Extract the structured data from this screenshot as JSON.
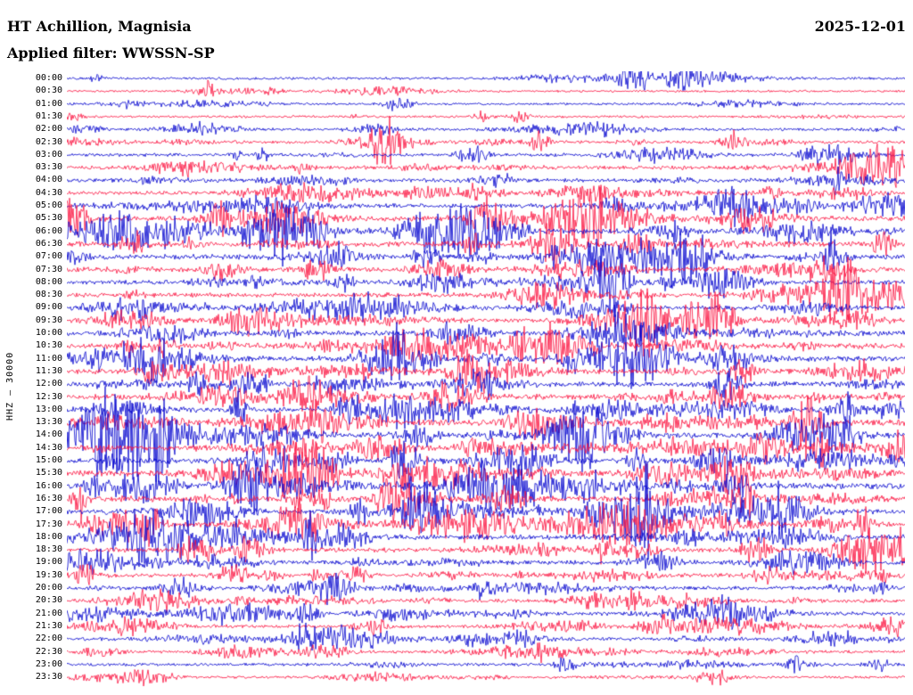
{
  "header": {
    "station_title": "HT Achillion, Magnisia",
    "date": "2025-12-01",
    "filter_label": "Applied filter: WWSSN-SP"
  },
  "axis": {
    "left_label": "HHZ — 30000"
  },
  "chart_data": {
    "type": "line",
    "kind": "helicorder-seismogram",
    "station": "HT Achillion, Magnisia",
    "channel": "HHZ",
    "scale": 30000,
    "date": "2025-12-01",
    "filter": "WWSSN-SP",
    "row_duration_minutes": 30,
    "grid": false,
    "legend": false,
    "trace_colors": {
      "blue": "#0202ce",
      "red": "#fb103e"
    },
    "rows": [
      {
        "time": "00:00",
        "color": "blue",
        "activity": 0.9
      },
      {
        "time": "00:30",
        "color": "red",
        "activity": 0.7
      },
      {
        "time": "01:00",
        "color": "blue",
        "activity": 0.7
      },
      {
        "time": "01:30",
        "color": "red",
        "activity": 0.8
      },
      {
        "time": "02:00",
        "color": "blue",
        "activity": 1.0
      },
      {
        "time": "02:30",
        "color": "red",
        "activity": 1.3
      },
      {
        "time": "03:00",
        "color": "blue",
        "activity": 1.4
      },
      {
        "time": "03:30",
        "color": "red",
        "activity": 1.8
      },
      {
        "time": "04:00",
        "color": "blue",
        "activity": 1.8
      },
      {
        "time": "04:30",
        "color": "red",
        "activity": 2.2
      },
      {
        "time": "05:00",
        "color": "blue",
        "activity": 2.4
      },
      {
        "time": "05:30",
        "color": "red",
        "activity": 2.8
      },
      {
        "time": "06:00",
        "color": "blue",
        "activity": 2.8
      },
      {
        "time": "06:30",
        "color": "red",
        "activity": 3.2
      },
      {
        "time": "07:00",
        "color": "blue",
        "activity": 3.0
      },
      {
        "time": "07:30",
        "color": "red",
        "activity": 2.6
      },
      {
        "time": "08:00",
        "color": "blue",
        "activity": 2.4
      },
      {
        "time": "08:30",
        "color": "red",
        "activity": 2.4
      },
      {
        "time": "09:00",
        "color": "blue",
        "activity": 2.4
      },
      {
        "time": "09:30",
        "color": "red",
        "activity": 2.4
      },
      {
        "time": "10:00",
        "color": "blue",
        "activity": 2.8
      },
      {
        "time": "10:30",
        "color": "red",
        "activity": 3.2
      },
      {
        "time": "11:00",
        "color": "blue",
        "activity": 3.2
      },
      {
        "time": "11:30",
        "color": "red",
        "activity": 2.9
      },
      {
        "time": "12:00",
        "color": "blue",
        "activity": 2.9
      },
      {
        "time": "12:30",
        "color": "red",
        "activity": 3.3
      },
      {
        "time": "13:00",
        "color": "blue",
        "activity": 3.8
      },
      {
        "time": "13:30",
        "color": "red",
        "activity": 3.8
      },
      {
        "time": "14:00",
        "color": "blue",
        "activity": 3.8
      },
      {
        "time": "14:30",
        "color": "red",
        "activity": 3.4
      },
      {
        "time": "15:00",
        "color": "blue",
        "activity": 3.4
      },
      {
        "time": "15:30",
        "color": "red",
        "activity": 3.8
      },
      {
        "time": "16:00",
        "color": "blue",
        "activity": 3.8
      },
      {
        "time": "16:30",
        "color": "red",
        "activity": 3.4
      },
      {
        "time": "17:00",
        "color": "blue",
        "activity": 3.0
      },
      {
        "time": "17:30",
        "color": "red",
        "activity": 3.3
      },
      {
        "time": "18:00",
        "color": "blue",
        "activity": 2.9
      },
      {
        "time": "18:30",
        "color": "red",
        "activity": 2.5
      },
      {
        "time": "19:00",
        "color": "blue",
        "activity": 2.1
      },
      {
        "time": "19:30",
        "color": "red",
        "activity": 2.0
      },
      {
        "time": "20:00",
        "color": "blue",
        "activity": 2.0
      },
      {
        "time": "20:30",
        "color": "red",
        "activity": 1.8
      },
      {
        "time": "21:00",
        "color": "blue",
        "activity": 1.8
      },
      {
        "time": "21:30",
        "color": "red",
        "activity": 1.6
      },
      {
        "time": "22:00",
        "color": "blue",
        "activity": 1.6
      },
      {
        "time": "22:30",
        "color": "red",
        "activity": 1.3
      },
      {
        "time": "23:00",
        "color": "blue",
        "activity": 1.2
      },
      {
        "time": "23:30",
        "color": "red",
        "activity": 1.0
      }
    ]
  }
}
